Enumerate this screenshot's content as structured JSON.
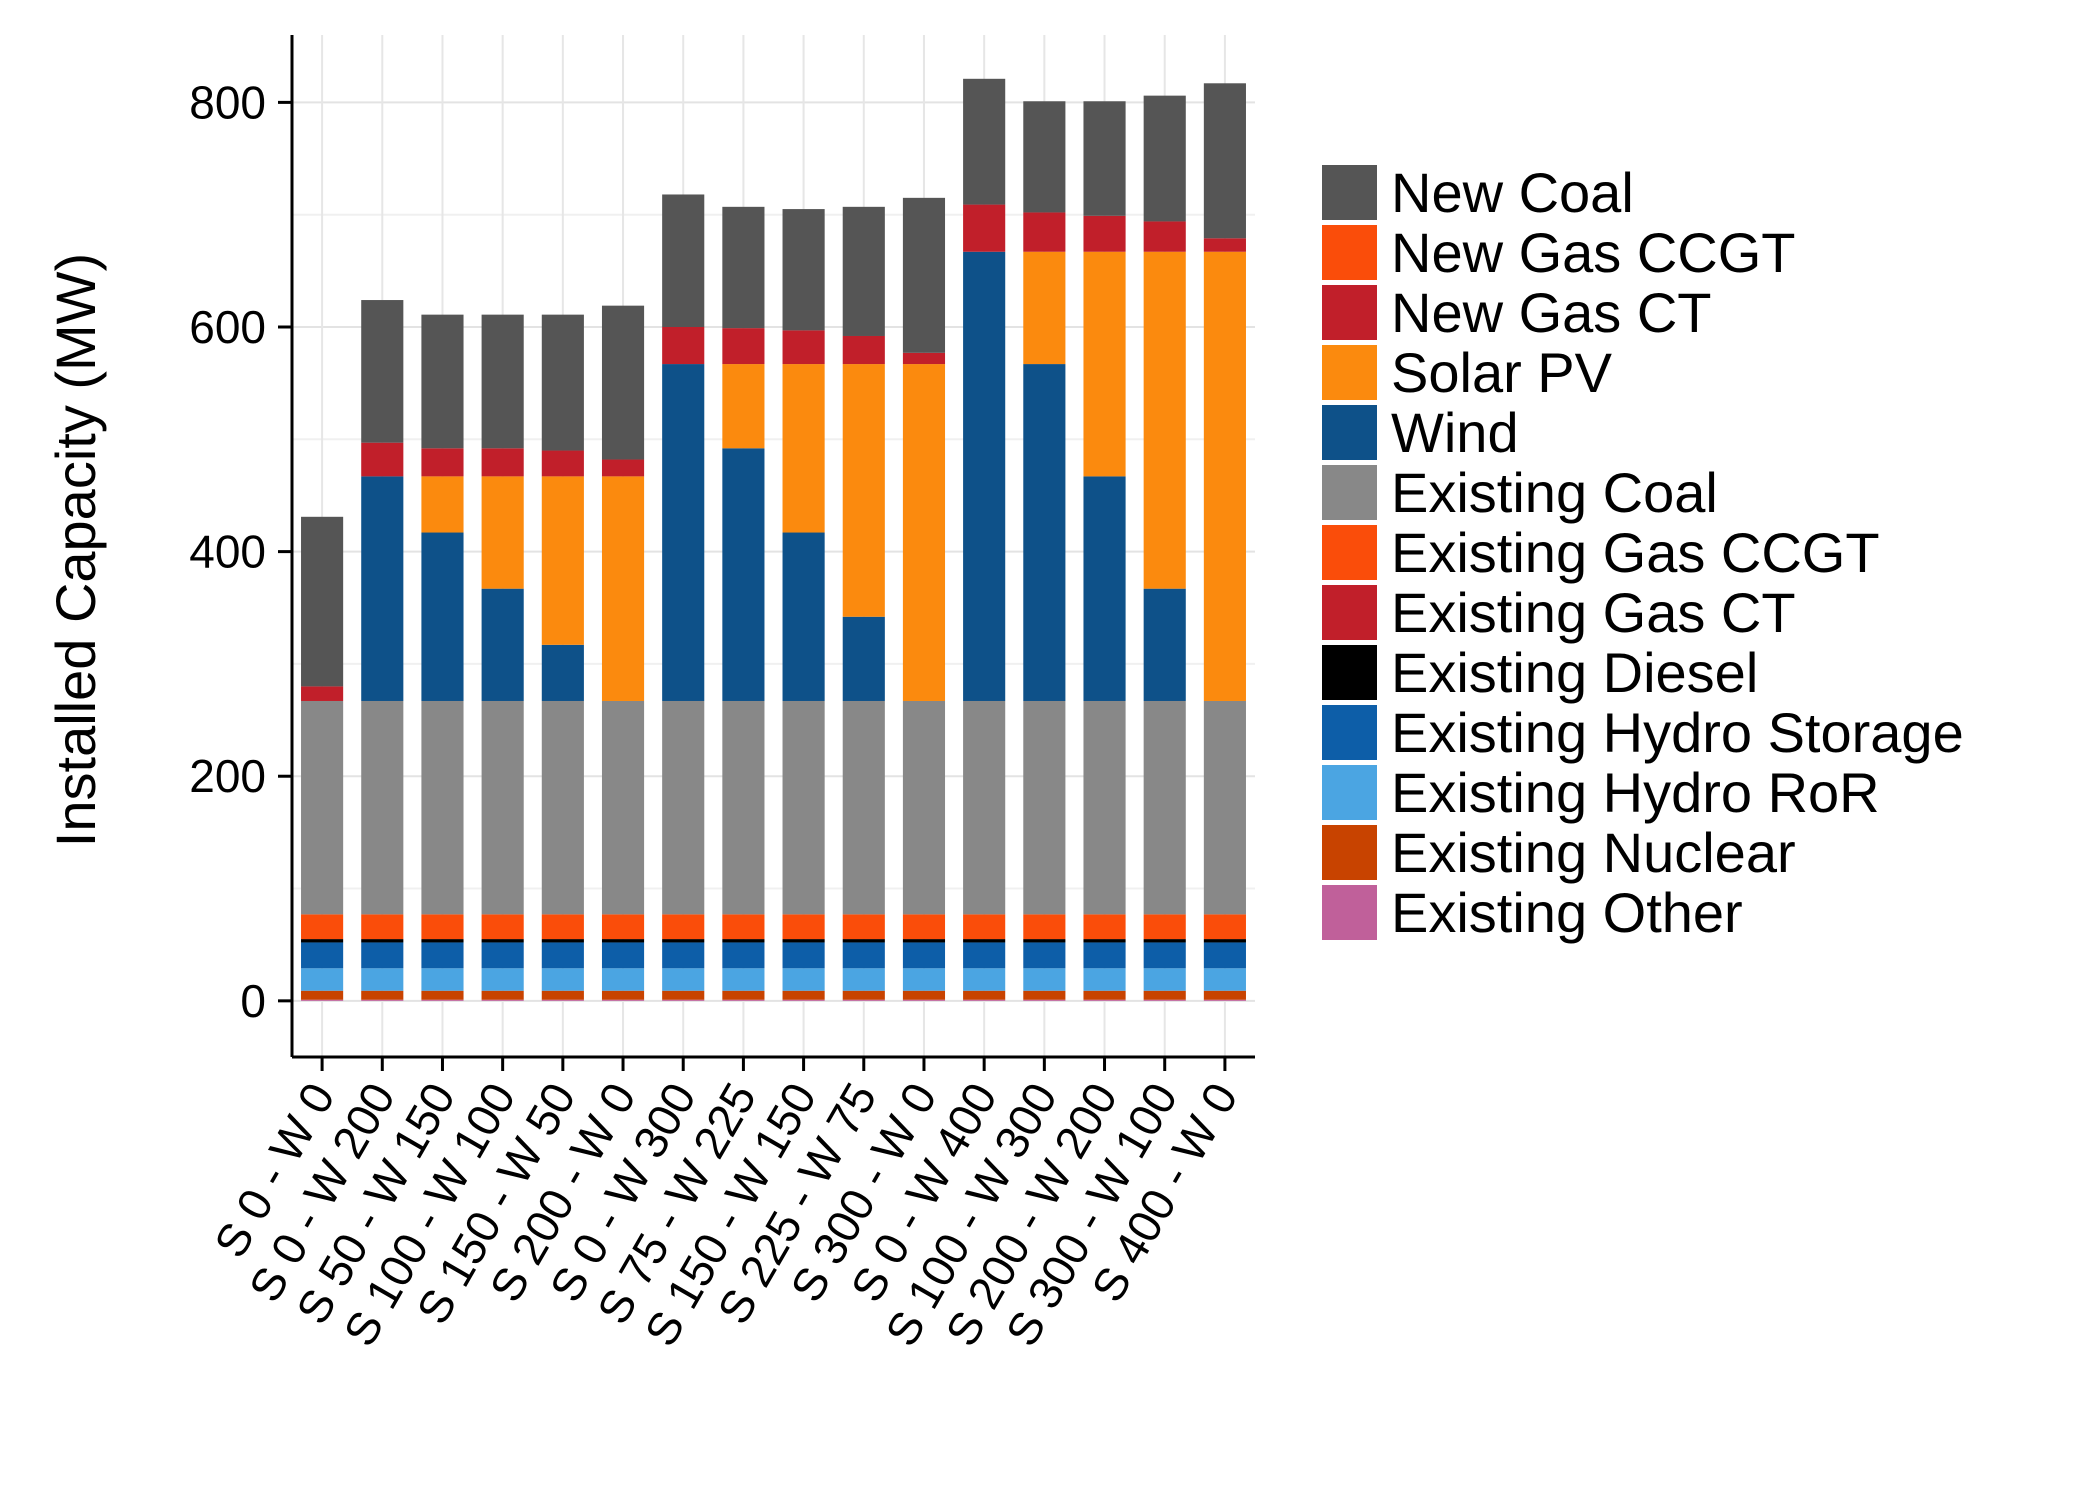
{
  "chart_data": {
    "type": "bar",
    "stacked": true,
    "title": "",
    "xlabel": "",
    "ylabel": "Installed Capacity (MW)",
    "ylim": [
      -50,
      860
    ],
    "yticks": [
      0,
      200,
      400,
      600,
      800
    ],
    "grid": true,
    "legend_position": "right",
    "categories": [
      "S 0 - W 0",
      "S 0 - W 200",
      "S 50 - W 150",
      "S 100 - W 100",
      "S 150 - W 50",
      "S 200 - W 0",
      "S 0 - W 300",
      "S 75 - W 225",
      "S 150 - W 150",
      "S 225 - W 75",
      "S 300 - W 0",
      "S 0 - W 400",
      "S 100 - W 300",
      "S 200 - W 200",
      "S 300 - W 100",
      "S 400 - W 0"
    ],
    "series": [
      {
        "name": "Existing Other",
        "color": "#c0609a",
        "values": [
          1,
          1,
          1,
          1,
          1,
          1,
          1,
          1,
          1,
          1,
          1,
          1,
          1,
          1,
          1,
          1
        ]
      },
      {
        "name": "Existing Nuclear",
        "color": "#c84300",
        "values": [
          8,
          8,
          8,
          8,
          8,
          8,
          8,
          8,
          8,
          8,
          8,
          8,
          8,
          8,
          8,
          8
        ]
      },
      {
        "name": "Existing Hydro RoR",
        "color": "#4ba5e2",
        "values": [
          20,
          20,
          20,
          20,
          20,
          20,
          20,
          20,
          20,
          20,
          20,
          20,
          20,
          20,
          20,
          20
        ]
      },
      {
        "name": "Existing Hydro Storage",
        "color": "#0d5ea8",
        "values": [
          23,
          23,
          23,
          23,
          23,
          23,
          23,
          23,
          23,
          23,
          23,
          23,
          23,
          23,
          23,
          23
        ]
      },
      {
        "name": "Existing Diesel",
        "color": "#000000",
        "values": [
          3,
          3,
          3,
          3,
          3,
          3,
          3,
          3,
          3,
          3,
          3,
          3,
          3,
          3,
          3,
          3
        ]
      },
      {
        "name": "Existing Gas CT",
        "color": "#c11f2a",
        "values": [
          0,
          0,
          0,
          0,
          0,
          0,
          0,
          0,
          0,
          0,
          0,
          0,
          0,
          0,
          0,
          0
        ]
      },
      {
        "name": "Existing Gas CCGT",
        "color": "#fa4d0a",
        "values": [
          22,
          22,
          22,
          22,
          22,
          22,
          22,
          22,
          22,
          22,
          22,
          22,
          22,
          22,
          22,
          22
        ]
      },
      {
        "name": "Existing Coal",
        "color": "#888888",
        "values": [
          190,
          190,
          190,
          190,
          190,
          190,
          190,
          190,
          190,
          190,
          190,
          190,
          190,
          190,
          190,
          190
        ]
      },
      {
        "name": "Wind",
        "color": "#0e5189",
        "values": [
          0,
          200,
          150,
          100,
          50,
          0,
          300,
          225,
          150,
          75,
          0,
          400,
          300,
          200,
          100,
          0
        ]
      },
      {
        "name": "Solar PV",
        "color": "#fb8a0e",
        "values": [
          0,
          0,
          50,
          100,
          150,
          200,
          0,
          75,
          150,
          225,
          300,
          0,
          100,
          200,
          300,
          400
        ]
      },
      {
        "name": "New Gas CT",
        "color": "#c11f2a",
        "values": [
          13,
          30,
          25,
          25,
          23,
          15,
          33,
          32,
          30,
          25,
          10,
          42,
          35,
          32,
          27,
          12
        ]
      },
      {
        "name": "New Gas CCGT",
        "color": "#fa4d0a",
        "values": [
          0,
          0,
          0,
          0,
          0,
          0,
          0,
          0,
          0,
          0,
          0,
          0,
          0,
          0,
          0,
          0
        ]
      },
      {
        "name": "New Coal",
        "color": "#555555",
        "values": [
          151,
          127,
          119,
          119,
          121,
          137,
          118,
          108,
          108,
          115,
          138,
          112,
          99,
          102,
          112,
          138
        ]
      }
    ],
    "legend_order": [
      "New Coal",
      "New Gas CCGT",
      "New Gas CT",
      "Solar PV",
      "Wind",
      "Existing Coal",
      "Existing Gas CCGT",
      "Existing Gas CT",
      "Existing Diesel",
      "Existing Hydro Storage",
      "Existing Hydro RoR",
      "Existing Nuclear",
      "Existing Other"
    ]
  }
}
